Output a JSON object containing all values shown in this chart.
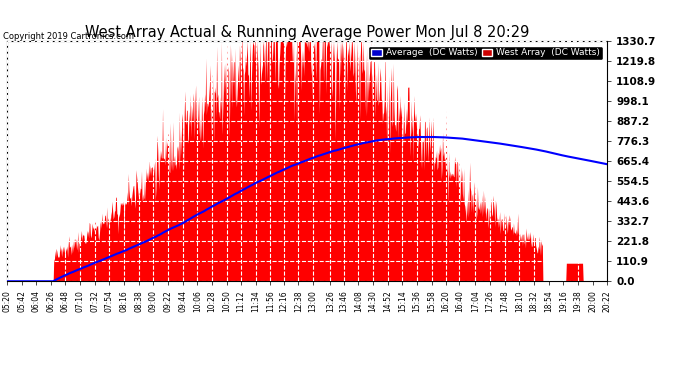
{
  "title": "West Array Actual & Running Average Power Mon Jul 8 20:29",
  "copyright": "Copyright 2019 Cartronics.com",
  "ylabel_ticks": [
    0.0,
    110.9,
    221.8,
    332.7,
    443.6,
    554.5,
    665.4,
    776.3,
    887.2,
    998.1,
    1108.9,
    1219.8,
    1330.7
  ],
  "ymax": 1330.7,
  "ymin": 0.0,
  "legend_avg_label": "Average  (DC Watts)",
  "legend_west_label": "West Array  (DC Watts)",
  "avg_color": "#0000ff",
  "west_color": "#ff0000",
  "avg_legend_bg": "#0000cc",
  "west_legend_bg": "#cc0000",
  "fig_bg": "#ffffff",
  "plot_bg": "#ffffff",
  "grid_color": "#aaaaaa",
  "x_labels": [
    "05:20",
    "05:42",
    "06:04",
    "06:26",
    "06:48",
    "07:10",
    "07:32",
    "07:54",
    "08:16",
    "08:38",
    "09:00",
    "09:22",
    "09:44",
    "10:06",
    "10:28",
    "10:50",
    "11:12",
    "11:34",
    "11:56",
    "12:16",
    "12:38",
    "13:00",
    "13:26",
    "13:46",
    "14:08",
    "14:30",
    "14:52",
    "15:14",
    "15:36",
    "15:58",
    "16:20",
    "16:40",
    "17:04",
    "17:26",
    "17:48",
    "18:10",
    "18:32",
    "18:54",
    "19:16",
    "19:38",
    "20:00",
    "20:22"
  ]
}
